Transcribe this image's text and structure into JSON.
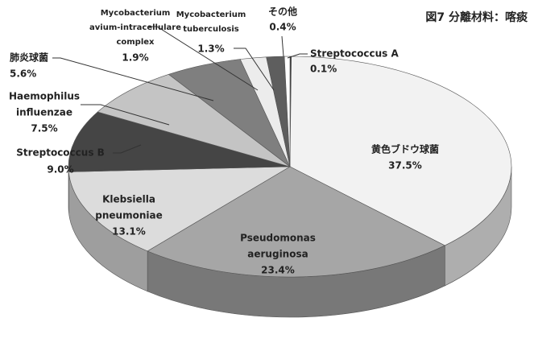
{
  "chart_data": {
    "type": "pie3d",
    "title": "図7 分離材料：喀痰",
    "categories": [
      [
        "Streptococcus A"
      ],
      [
        "黄色ブドウ球菌"
      ],
      [
        "Pseudomonas",
        "aeruginosa"
      ],
      [
        "Klebsiella",
        "pneumoniae"
      ],
      [
        "Streptococcus B"
      ],
      [
        "Haemophilus",
        "influenzae"
      ],
      [
        "肺炎球菌"
      ],
      [
        "Mycobacterium",
        "avium-intracellulare",
        "complex"
      ],
      [
        "Mycobacterium",
        "tuberculosis"
      ],
      [
        "その他"
      ]
    ],
    "values": [
      0.1,
      37.5,
      23.4,
      13.1,
      9.0,
      7.5,
      5.6,
      1.9,
      1.3,
      0.4
    ],
    "value_labels": [
      "0.1%",
      "37.5%",
      "23.4%",
      "13.1%",
      "9.0%",
      "7.5%",
      "5.6%",
      "1.9%",
      "1.3%",
      "0.4%"
    ],
    "colors": [
      "#333333",
      "#f2f2f2",
      "#a6a6a6",
      "#dcdcdc",
      "#454545",
      "#c4c4c4",
      "#7f7f7f",
      "#ececec",
      "#5e5e5e",
      "#ffffff"
    ]
  }
}
